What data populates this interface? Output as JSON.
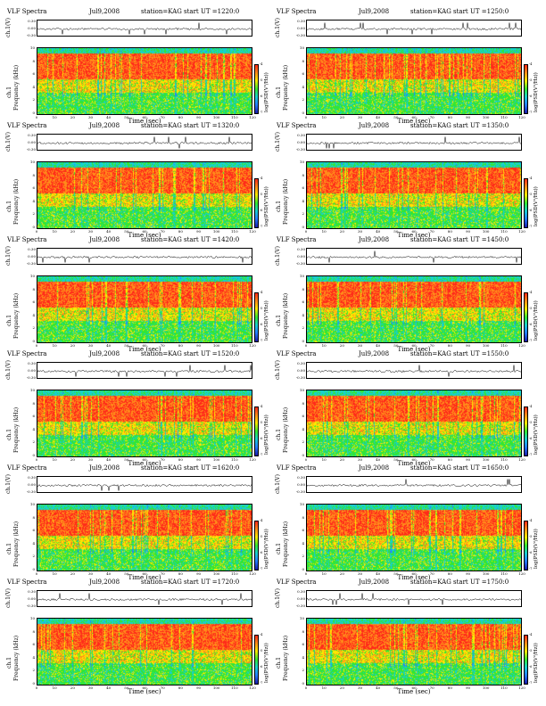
{
  "page": {
    "title": ""
  },
  "panel_text": {
    "program": "VLF Spectra",
    "date": "Jul9,2008",
    "station": "station=KAG",
    "start_prefix": "start  UT  =",
    "ts_ylabel": "ch.1(V)",
    "spec_ylabel_ch": "ch.1",
    "spec_ylabel_freq": "Frequency (kHz)",
    "xlabel": "Time  (sec)",
    "cbar_label": "log(PSD(V²/Hz))"
  },
  "colors": {
    "red": "#ff2a1a",
    "orange": "#ff8c1a",
    "yellow": "#ffe800",
    "green": "#33e633",
    "cyan": "#18cfcf",
    "blue": "#2680ff",
    "navy": "#1a1aa8"
  },
  "chart_data": [
    {
      "type": "heatmap",
      "start_ut": "1220:0",
      "start_label": "1220:0",
      "ts_ticks": [
        "0.30",
        "0.00",
        "-0.30"
      ],
      "y_ticks": [
        "10",
        "8",
        "6",
        "4",
        "2",
        "0"
      ],
      "x_ticks": [
        "0",
        "10",
        "20",
        "30",
        "40",
        "50",
        "60",
        "70",
        "80",
        "90",
        "100",
        "110",
        "120"
      ],
      "xlim": [
        0,
        120
      ],
      "ylim_khz": [
        0,
        10
      ],
      "cbar_ticks": [
        "-4",
        "-5",
        "-6",
        "-7"
      ]
    },
    {
      "type": "heatmap",
      "start_ut": "1250:0",
      "start_label": "1250:0",
      "ts_ticks": [
        "0.30",
        "0.00",
        "-0.30"
      ],
      "y_ticks": [
        "10",
        "8",
        "6",
        "4",
        "2",
        "0"
      ],
      "x_ticks": [
        "0",
        "10",
        "20",
        "30",
        "40",
        "50",
        "60",
        "70",
        "80",
        "90",
        "100",
        "110",
        "120"
      ],
      "xlim": [
        0,
        120
      ],
      "ylim_khz": [
        0,
        10
      ],
      "cbar_ticks": [
        "-4",
        "-5",
        "-6",
        "-7"
      ]
    },
    {
      "type": "heatmap",
      "start_ut": "1320:0",
      "start_label": "1320:0",
      "ts_ticks": [
        "0.30",
        "0.00",
        "-0.30"
      ],
      "y_ticks": [
        "10",
        "8",
        "6",
        "4",
        "2",
        "0"
      ],
      "x_ticks": [
        "0",
        "10",
        "20",
        "30",
        "40",
        "50",
        "60",
        "70",
        "80",
        "90",
        "100",
        "110",
        "120"
      ],
      "xlim": [
        0,
        120
      ],
      "ylim_khz": [
        0,
        10
      ],
      "cbar_ticks": [
        "-4",
        "-5",
        "-6",
        "-7"
      ]
    },
    {
      "type": "heatmap",
      "start_ut": "1350:0",
      "start_label": "1350:0",
      "ts_ticks": [
        "0.30",
        "0.00",
        "-0.30"
      ],
      "y_ticks": [
        "10",
        "8",
        "6",
        "4",
        "2",
        "0"
      ],
      "x_ticks": [
        "0",
        "10",
        "20",
        "30",
        "40",
        "50",
        "60",
        "70",
        "80",
        "90",
        "100",
        "110",
        "120"
      ],
      "xlim": [
        0,
        120
      ],
      "ylim_khz": [
        0,
        10
      ],
      "cbar_ticks": [
        "-4",
        "-5",
        "-6",
        "-7"
      ]
    },
    {
      "type": "heatmap",
      "start_ut": "1420:0",
      "start_label": "1420:0",
      "ts_ticks": [
        "0.30",
        "0.00",
        "-0.30"
      ],
      "y_ticks": [
        "10",
        "8",
        "6",
        "4",
        "2",
        "0"
      ],
      "x_ticks": [
        "0",
        "10",
        "20",
        "30",
        "40",
        "50",
        "60",
        "70",
        "80",
        "90",
        "100",
        "110",
        "120"
      ],
      "xlim": [
        0,
        120
      ],
      "ylim_khz": [
        0,
        10
      ],
      "cbar_ticks": [
        "-4",
        "-5",
        "-6",
        "-7"
      ]
    },
    {
      "type": "heatmap",
      "start_ut": "1450:0",
      "start_label": "1450:0",
      "ts_ticks": [
        "0.30",
        "0.00",
        "-0.30"
      ],
      "y_ticks": [
        "10",
        "8",
        "6",
        "4",
        "2",
        "0"
      ],
      "x_ticks": [
        "0",
        "10",
        "20",
        "30",
        "40",
        "50",
        "60",
        "70",
        "80",
        "90",
        "100",
        "110",
        "120"
      ],
      "xlim": [
        0,
        120
      ],
      "ylim_khz": [
        0,
        10
      ],
      "cbar_ticks": [
        "-4",
        "-5",
        "-6",
        "-7"
      ]
    },
    {
      "type": "heatmap",
      "start_ut": "1520:0",
      "start_label": "1520:0",
      "ts_ticks": [
        "0.30",
        "0.00",
        "-0.30"
      ],
      "y_ticks": [
        "10",
        "8",
        "6",
        "4",
        "2",
        "0"
      ],
      "x_ticks": [
        "0",
        "10",
        "20",
        "30",
        "40",
        "50",
        "60",
        "70",
        "80",
        "90",
        "100",
        "110",
        "120"
      ],
      "xlim": [
        0,
        120
      ],
      "ylim_khz": [
        0,
        10
      ],
      "cbar_ticks": [
        "-4",
        "-5",
        "-6",
        "-7"
      ]
    },
    {
      "type": "heatmap",
      "start_ut": "1550:0",
      "start_label": "1550:0",
      "ts_ticks": [
        "0.30",
        "0.00",
        "-0.30"
      ],
      "y_ticks": [
        "10",
        "8",
        "6",
        "4",
        "2",
        "0"
      ],
      "x_ticks": [
        "0",
        "10",
        "20",
        "30",
        "40",
        "50",
        "60",
        "70",
        "80",
        "90",
        "100",
        "110",
        "120"
      ],
      "xlim": [
        0,
        120
      ],
      "ylim_khz": [
        0,
        10
      ],
      "cbar_ticks": [
        "-4",
        "-5",
        "-6",
        "-7"
      ]
    },
    {
      "type": "heatmap",
      "start_ut": "1620:0",
      "start_label": "1620:0",
      "ts_ticks": [
        "0.30",
        "0.00",
        "-0.30"
      ],
      "y_ticks": [
        "10",
        "8",
        "6",
        "4",
        "2",
        "0"
      ],
      "x_ticks": [
        "0",
        "10",
        "20",
        "30",
        "40",
        "50",
        "60",
        "70",
        "80",
        "90",
        "100",
        "110",
        "120"
      ],
      "xlim": [
        0,
        120
      ],
      "ylim_khz": [
        0,
        10
      ],
      "cbar_ticks": [
        "-4",
        "-5",
        "-6",
        "-7"
      ]
    },
    {
      "type": "heatmap",
      "start_ut": "1650:0",
      "start_label": "1650:0",
      "ts_ticks": [
        "0.30",
        "0.00",
        "-0.30"
      ],
      "y_ticks": [
        "10",
        "8",
        "6",
        "4",
        "2",
        "0"
      ],
      "x_ticks": [
        "0",
        "10",
        "20",
        "30",
        "40",
        "50",
        "60",
        "70",
        "80",
        "90",
        "100",
        "110",
        "120"
      ],
      "xlim": [
        0,
        120
      ],
      "ylim_khz": [
        0,
        10
      ],
      "cbar_ticks": [
        "-4",
        "-5",
        "-6",
        "-7"
      ]
    },
    {
      "type": "heatmap",
      "start_ut": "1720:0",
      "start_label": "1720:0",
      "ts_ticks": [
        "0.30",
        "0.00",
        "-0.30"
      ],
      "y_ticks": [
        "10",
        "8",
        "6",
        "4",
        "2",
        "0"
      ],
      "x_ticks": [
        "0",
        "10",
        "20",
        "30",
        "40",
        "50",
        "60",
        "70",
        "80",
        "90",
        "100",
        "110",
        "120"
      ],
      "xlim": [
        0,
        120
      ],
      "ylim_khz": [
        0,
        10
      ],
      "cbar_ticks": [
        "-4",
        "-5",
        "-6",
        "-7"
      ]
    },
    {
      "type": "heatmap",
      "start_ut": "1750:0",
      "start_label": "1750:0",
      "ts_ticks": [
        "0.30",
        "0.00",
        "-0.30"
      ],
      "y_ticks": [
        "10",
        "8",
        "6",
        "4",
        "2",
        "0"
      ],
      "x_ticks": [
        "0",
        "10",
        "20",
        "30",
        "40",
        "50",
        "60",
        "70",
        "80",
        "90",
        "100",
        "110",
        "120"
      ],
      "xlim": [
        0,
        120
      ],
      "ylim_khz": [
        0,
        10
      ],
      "cbar_ticks": [
        "-4",
        "-5",
        "-6",
        "-7"
      ]
    }
  ]
}
